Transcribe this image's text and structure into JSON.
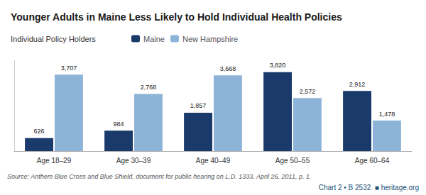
{
  "chart_data": {
    "type": "bar",
    "title": "Younger Adults in Maine Less Likely to Hold Individual Health Policies",
    "subtitle": "Individual Policy Holders",
    "annotations": [
      "Source: Anthem Blue Cross and Blue Shield, document for public hearing on L.D. 1333, April 26, 2011, p. 1.",
      "Chart 2 • B 2532  ■ heritage.org"
    ],
    "categories": [
      "Age 18–29",
      "Age 30–39",
      "Age 40–49",
      "Age 50–55",
      "Age 60–64"
    ],
    "series": [
      {
        "name": "Maine",
        "color": "#1a3a6b",
        "values": [
          626,
          984,
          1857,
          3820,
          2912
        ],
        "value_labels": [
          "626",
          "984",
          "1,857",
          "3,820",
          "2,912"
        ]
      },
      {
        "name": "New Hampshire",
        "color": "#8db4d8",
        "values": [
          3707,
          2768,
          3668,
          2572,
          1478
        ],
        "value_labels": [
          "3,707",
          "2,768",
          "3,668",
          "2,572",
          "1,478"
        ]
      }
    ],
    "ylim": [
      0,
      4400
    ],
    "grid": false,
    "legend": "top",
    "data_labels": true,
    "tick_labels": "x"
  }
}
